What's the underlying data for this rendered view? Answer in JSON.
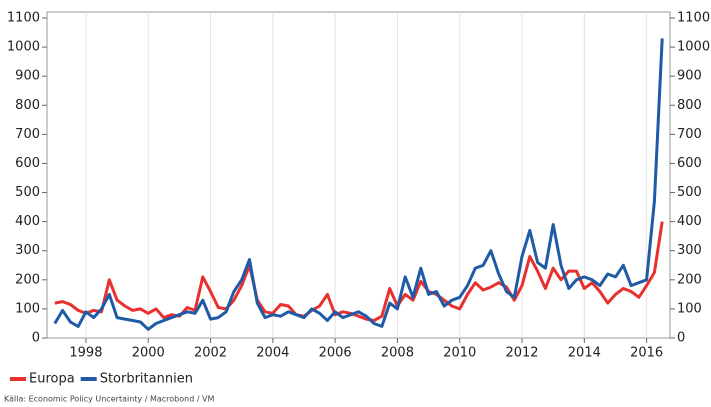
{
  "chart_data": {
    "type": "line",
    "x": [
      1997.0,
      1997.25,
      1997.5,
      1997.75,
      1998.0,
      1998.25,
      1998.5,
      1998.75,
      1999.0,
      1999.25,
      1999.5,
      1999.75,
      2000.0,
      2000.25,
      2000.5,
      2000.75,
      2001.0,
      2001.25,
      2001.5,
      2001.75,
      2002.0,
      2002.25,
      2002.5,
      2002.75,
      2003.0,
      2003.25,
      2003.5,
      2003.75,
      2004.0,
      2004.25,
      2004.5,
      2004.75,
      2005.0,
      2005.25,
      2005.5,
      2005.75,
      2006.0,
      2006.25,
      2006.5,
      2006.75,
      2007.0,
      2007.25,
      2007.5,
      2007.75,
      2008.0,
      2008.25,
      2008.5,
      2008.75,
      2009.0,
      2009.25,
      2009.5,
      2009.75,
      2010.0,
      2010.25,
      2010.5,
      2010.75,
      2011.0,
      2011.25,
      2011.5,
      2011.75,
      2012.0,
      2012.25,
      2012.5,
      2012.75,
      2013.0,
      2013.25,
      2013.5,
      2013.75,
      2014.0,
      2014.25,
      2014.5,
      2014.75,
      2015.0,
      2015.25,
      2015.5,
      2015.75,
      2016.0,
      2016.25,
      2016.5
    ],
    "series": [
      {
        "name": "Europa",
        "color": "#e8312f",
        "values": [
          120,
          125,
          115,
          95,
          85,
          95,
          90,
          200,
          130,
          110,
          95,
          100,
          85,
          100,
          70,
          80,
          75,
          105,
          95,
          210,
          160,
          105,
          100,
          130,
          180,
          250,
          130,
          90,
          85,
          115,
          110,
          80,
          75,
          95,
          110,
          150,
          80,
          90,
          85,
          75,
          65,
          60,
          75,
          170,
          110,
          150,
          130,
          195,
          160,
          150,
          130,
          110,
          100,
          150,
          190,
          165,
          175,
          190,
          175,
          130,
          180,
          280,
          230,
          170,
          240,
          200,
          230,
          230,
          170,
          190,
          160,
          120,
          150,
          170,
          160,
          140,
          180,
          225,
          400
        ]
      },
      {
        "name": "Storbritannien",
        "color": "#1f5aa6",
        "values": [
          50,
          95,
          55,
          40,
          90,
          70,
          100,
          150,
          70,
          65,
          60,
          55,
          30,
          50,
          60,
          70,
          80,
          90,
          85,
          130,
          65,
          70,
          90,
          160,
          200,
          270,
          120,
          70,
          80,
          75,
          90,
          80,
          70,
          100,
          85,
          60,
          90,
          70,
          80,
          90,
          75,
          50,
          40,
          120,
          100,
          210,
          140,
          240,
          150,
          160,
          110,
          130,
          140,
          180,
          240,
          250,
          300,
          220,
          160,
          140,
          280,
          370,
          260,
          240,
          390,
          250,
          170,
          200,
          210,
          200,
          180,
          220,
          210,
          250,
          180,
          190,
          200,
          470,
          1030
        ]
      }
    ],
    "xlim": [
      1996.75,
      2016.75
    ],
    "xticks": [
      1998,
      2000,
      2002,
      2004,
      2006,
      2008,
      2010,
      2012,
      2014,
      2016
    ],
    "ylim": [
      0,
      1100
    ],
    "yticks": [
      0,
      100,
      200,
      300,
      400,
      500,
      600,
      700,
      800,
      900,
      1000,
      1100
    ],
    "grid": true,
    "source": "Källa: Economic Policy Uncertainty / Macrobond / VM"
  }
}
